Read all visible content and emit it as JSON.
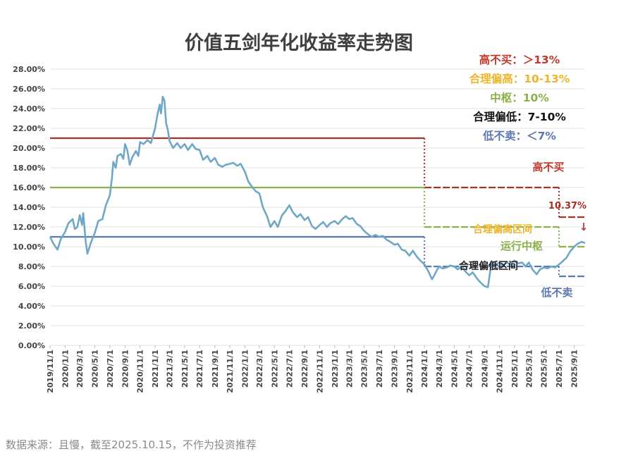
{
  "chart_data": {
    "type": "line",
    "title": "价值五剑年化收益率走势图",
    "y_ticks": [
      "28.00%",
      "26.00%",
      "24.00%",
      "22.00%",
      "20.00%",
      "18.00%",
      "16.00%",
      "14.00%",
      "12.00%",
      "10.00%",
      "8.00%",
      "6.00%",
      "4.00%",
      "2.00%",
      "0.00%"
    ],
    "ylim": [
      0,
      28
    ],
    "x_ticks": [
      "2019/11/1",
      "2020/1/1",
      "2020/3/1",
      "2020/5/1",
      "2020/7/1",
      "2020/9/1",
      "2020/11/1",
      "2021/1/1",
      "2021/3/1",
      "2021/5/1",
      "2021/7/1",
      "2021/9/1",
      "2021/11/1",
      "2022/1/1",
      "2022/3/1",
      "2022/5/1",
      "2022/7/1",
      "2022/9/1",
      "2022/11/1",
      "2023/1/1",
      "2023/3/1",
      "2023/5/1",
      "2023/7/1",
      "2023/9/1",
      "2023/11/1",
      "2024/1/1",
      "2024/3/1",
      "2024/5/1",
      "2024/7/1",
      "2024/9/1",
      "2024/11/1",
      "2025/1/1",
      "2025/3/1",
      "2025/5/1",
      "2025/7/1",
      "2025/9/1"
    ],
    "grid": true,
    "legend": [
      {
        "text": "高不买：＞13%",
        "color": "#c0392b"
      },
      {
        "text": "合理偏高：10-13%",
        "color": "#f0b429"
      },
      {
        "text": "中枢：10%",
        "color": "#8cb04a"
      },
      {
        "text": "合理偏低：7-10%",
        "color": "#111111"
      },
      {
        "text": "低不卖：＜7%",
        "color": "#5b77b0"
      }
    ],
    "legend_position": "top-right",
    "series": [
      {
        "color": "#6fa8c6",
        "points": [
          [
            "2019-11-01",
            11.0
          ],
          [
            "2019-11-15",
            10.3
          ],
          [
            "2019-12-01",
            9.7
          ],
          [
            "2019-12-15",
            10.8
          ],
          [
            "2020-01-01",
            11.5
          ],
          [
            "2020-01-15",
            12.4
          ],
          [
            "2020-02-01",
            12.8
          ],
          [
            "2020-02-10",
            11.8
          ],
          [
            "2020-02-20",
            12.0
          ],
          [
            "2020-03-01",
            13.2
          ],
          [
            "2020-03-10",
            12.2
          ],
          [
            "2020-03-15",
            13.4
          ],
          [
            "2020-03-25",
            10.5
          ],
          [
            "2020-04-01",
            9.3
          ],
          [
            "2020-04-15",
            10.4
          ],
          [
            "2020-05-01",
            11.4
          ],
          [
            "2020-05-15",
            12.6
          ],
          [
            "2020-06-01",
            12.8
          ],
          [
            "2020-06-15",
            14.2
          ],
          [
            "2020-07-01",
            15.2
          ],
          [
            "2020-07-10",
            17.0
          ],
          [
            "2020-07-15",
            18.6
          ],
          [
            "2020-07-25",
            18.0
          ],
          [
            "2020-08-01",
            19.2
          ],
          [
            "2020-08-15",
            19.4
          ],
          [
            "2020-08-25",
            18.9
          ],
          [
            "2020-09-01",
            20.4
          ],
          [
            "2020-09-10",
            19.8
          ],
          [
            "2020-09-20",
            18.3
          ],
          [
            "2020-10-01",
            19.1
          ],
          [
            "2020-10-15",
            19.7
          ],
          [
            "2020-10-25",
            19.2
          ],
          [
            "2020-11-01",
            20.6
          ],
          [
            "2020-11-15",
            20.4
          ],
          [
            "2020-12-01",
            20.8
          ],
          [
            "2020-12-15",
            20.5
          ],
          [
            "2021-01-01",
            22.0
          ],
          [
            "2021-01-10",
            23.3
          ],
          [
            "2021-01-20",
            24.4
          ],
          [
            "2021-01-25",
            23.5
          ],
          [
            "2021-02-01",
            25.2
          ],
          [
            "2021-02-08",
            24.8
          ],
          [
            "2021-02-15",
            22.5
          ],
          [
            "2021-02-22",
            21.8
          ],
          [
            "2021-03-01",
            20.7
          ],
          [
            "2021-03-15",
            20.0
          ],
          [
            "2021-04-01",
            20.5
          ],
          [
            "2021-04-15",
            20.0
          ],
          [
            "2021-05-01",
            20.4
          ],
          [
            "2021-05-15",
            19.8
          ],
          [
            "2021-06-01",
            20.4
          ],
          [
            "2021-06-15",
            19.9
          ],
          [
            "2021-07-01",
            19.8
          ],
          [
            "2021-07-15",
            18.8
          ],
          [
            "2021-08-01",
            19.2
          ],
          [
            "2021-08-15",
            18.6
          ],
          [
            "2021-09-01",
            19.0
          ],
          [
            "2021-09-15",
            18.3
          ],
          [
            "2021-10-01",
            18.1
          ],
          [
            "2021-10-15",
            18.3
          ],
          [
            "2021-11-01",
            18.4
          ],
          [
            "2021-11-15",
            18.5
          ],
          [
            "2021-12-01",
            18.2
          ],
          [
            "2021-12-15",
            18.4
          ],
          [
            "2022-01-01",
            17.6
          ],
          [
            "2022-01-15",
            16.6
          ],
          [
            "2022-02-01",
            16.0
          ],
          [
            "2022-02-15",
            15.6
          ],
          [
            "2022-03-01",
            15.4
          ],
          [
            "2022-03-15",
            14.0
          ],
          [
            "2022-04-01",
            13.1
          ],
          [
            "2022-04-15",
            12.0
          ],
          [
            "2022-05-01",
            12.6
          ],
          [
            "2022-05-15",
            12.0
          ],
          [
            "2022-06-01",
            13.2
          ],
          [
            "2022-06-15",
            13.6
          ],
          [
            "2022-07-01",
            14.2
          ],
          [
            "2022-07-15",
            13.5
          ],
          [
            "2022-08-01",
            13.0
          ],
          [
            "2022-08-15",
            13.3
          ],
          [
            "2022-09-01",
            12.7
          ],
          [
            "2022-09-15",
            13.0
          ],
          [
            "2022-10-01",
            12.1
          ],
          [
            "2022-10-15",
            11.8
          ],
          [
            "2022-11-01",
            12.2
          ],
          [
            "2022-11-15",
            12.5
          ],
          [
            "2022-12-01",
            12.0
          ],
          [
            "2022-12-15",
            12.4
          ],
          [
            "2023-01-01",
            12.6
          ],
          [
            "2023-01-15",
            12.3
          ],
          [
            "2023-02-01",
            12.8
          ],
          [
            "2023-02-15",
            13.1
          ],
          [
            "2023-03-01",
            12.8
          ],
          [
            "2023-03-15",
            12.9
          ],
          [
            "2023-04-01",
            12.3
          ],
          [
            "2023-04-15",
            12.1
          ],
          [
            "2023-05-01",
            11.6
          ],
          [
            "2023-05-15",
            11.3
          ],
          [
            "2023-06-01",
            11.0
          ],
          [
            "2023-06-15",
            11.2
          ],
          [
            "2023-07-01",
            11.0
          ],
          [
            "2023-07-15",
            11.1
          ],
          [
            "2023-08-01",
            10.7
          ],
          [
            "2023-08-15",
            10.5
          ],
          [
            "2023-09-01",
            10.2
          ],
          [
            "2023-09-15",
            10.3
          ],
          [
            "2023-10-01",
            9.7
          ],
          [
            "2023-10-15",
            9.6
          ],
          [
            "2023-11-01",
            9.1
          ],
          [
            "2023-11-15",
            9.6
          ],
          [
            "2023-12-01",
            9.0
          ],
          [
            "2023-12-15",
            8.6
          ],
          [
            "2024-01-01",
            8.2
          ],
          [
            "2024-01-15",
            7.6
          ],
          [
            "2024-02-01",
            6.7
          ],
          [
            "2024-02-10",
            7.1
          ],
          [
            "2024-02-20",
            7.6
          ],
          [
            "2024-03-01",
            8.0
          ],
          [
            "2024-03-15",
            7.8
          ],
          [
            "2024-04-01",
            7.9
          ],
          [
            "2024-04-15",
            8.1
          ],
          [
            "2024-05-01",
            8.0
          ],
          [
            "2024-05-15",
            7.7
          ],
          [
            "2024-06-01",
            8.0
          ],
          [
            "2024-06-15",
            7.5
          ],
          [
            "2024-07-01",
            7.1
          ],
          [
            "2024-07-15",
            7.4
          ],
          [
            "2024-08-01",
            6.8
          ],
          [
            "2024-08-15",
            6.4
          ],
          [
            "2024-09-01",
            6.0
          ],
          [
            "2024-09-15",
            5.9
          ],
          [
            "2024-09-25",
            7.6
          ],
          [
            "2024-10-01",
            8.5
          ],
          [
            "2024-10-15",
            8.2
          ],
          [
            "2024-11-01",
            8.4
          ],
          [
            "2024-11-15",
            8.1
          ],
          [
            "2024-12-01",
            8.4
          ],
          [
            "2024-12-15",
            8.2
          ],
          [
            "2025-01-01",
            8.6
          ],
          [
            "2025-01-15",
            8.3
          ],
          [
            "2025-02-01",
            8.4
          ],
          [
            "2025-02-15",
            8.0
          ],
          [
            "2025-03-01",
            8.4
          ],
          [
            "2025-03-15",
            7.7
          ],
          [
            "2025-04-01",
            7.2
          ],
          [
            "2025-04-15",
            7.7
          ],
          [
            "2025-05-01",
            7.9
          ],
          [
            "2025-05-15",
            7.8
          ],
          [
            "2025-06-01",
            8.0
          ],
          [
            "2025-06-15",
            7.9
          ],
          [
            "2025-07-01",
            8.2
          ],
          [
            "2025-07-15",
            8.5
          ],
          [
            "2025-08-01",
            8.9
          ],
          [
            "2025-08-15",
            9.5
          ],
          [
            "2025-09-01",
            10.0
          ],
          [
            "2025-09-15",
            10.3
          ],
          [
            "2025-10-01",
            10.5
          ],
          [
            "2025-10-15",
            10.37
          ]
        ]
      }
    ],
    "threshold_lines": [
      {
        "color": "#a93226",
        "segments": [
          [
            "2019-11-01",
            "2024-01-01",
            21
          ],
          [
            "2024-01-01",
            "2025-07-01",
            16
          ],
          [
            "2025-07-01",
            "2025-10-15",
            13
          ]
        ]
      },
      {
        "color": "#8cb04a",
        "segments": [
          [
            "2019-11-01",
            "2024-01-01",
            16
          ],
          [
            "2024-01-01",
            "2025-07-01",
            12
          ],
          [
            "2025-07-01",
            "2025-10-15",
            10
          ]
        ]
      },
      {
        "color": "#5b77b0",
        "segments": [
          [
            "2019-11-01",
            "2024-01-01",
            11
          ],
          [
            "2024-01-01",
            "2025-07-01",
            8
          ],
          [
            "2025-07-01",
            "2025-10-15",
            7
          ]
        ]
      }
    ],
    "annotations": [
      {
        "text": "高不买",
        "color": "#c0392b"
      },
      {
        "text": "10.37%",
        "color": "#a93226"
      },
      {
        "text": "↓",
        "color": "#c0392b"
      },
      {
        "text": "合理偏高区间",
        "color": "#f0b429"
      },
      {
        "text": "运行中枢",
        "color": "#8cb04a"
      },
      {
        "text": "合理偏低区间",
        "color": "#222222"
      },
      {
        "text": "低不卖",
        "color": "#5b77b0"
      }
    ]
  },
  "source_note": "数据来源：且慢，截至2025.10.15，不作为投资推荐"
}
